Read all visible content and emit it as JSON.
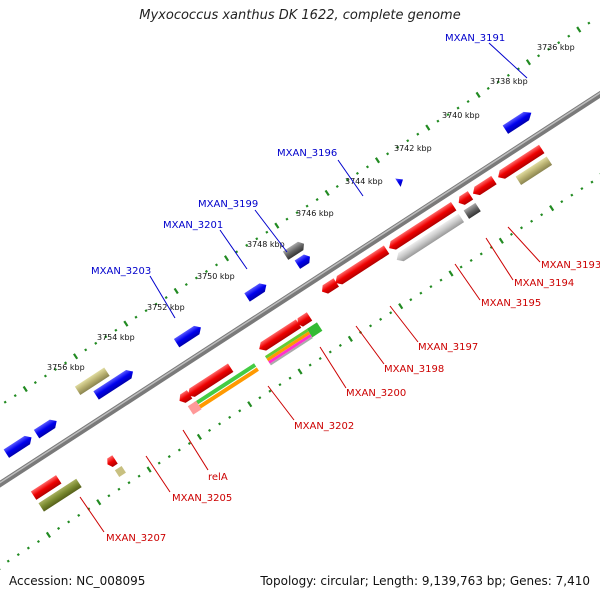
{
  "title": "Myxococcus xanthus DK 1622, complete genome",
  "footer": {
    "accession": "Accession: NC_008095",
    "topology": "Topology: circular; Length: 9,139,763 bp; Genes: 7,410"
  },
  "colors": {
    "forward_strand": "#0000ee",
    "reverse_strand": "#ee0000",
    "backbone": "#777777",
    "ticks": "#228b22"
  },
  "position_ticks": [
    "3736 kbp",
    "3738 kbp",
    "3740 kbp",
    "3742 kbp",
    "3744 kbp",
    "3746 kbp",
    "3748 kbp",
    "3750 kbp",
    "3752 kbp",
    "3754 kbp",
    "3756 kbp"
  ],
  "forward_genes": [
    "MXAN_3191",
    "MXAN_3196",
    "MXAN_3199",
    "MXAN_3201",
    "MXAN_3203"
  ],
  "reverse_genes": [
    "MXAN_3193",
    "MXAN_3194",
    "MXAN_3195",
    "MXAN_3197",
    "MXAN_3198",
    "MXAN_3200",
    "MXAN_3202",
    "relA",
    "MXAN_3205",
    "MXAN_3207"
  ]
}
